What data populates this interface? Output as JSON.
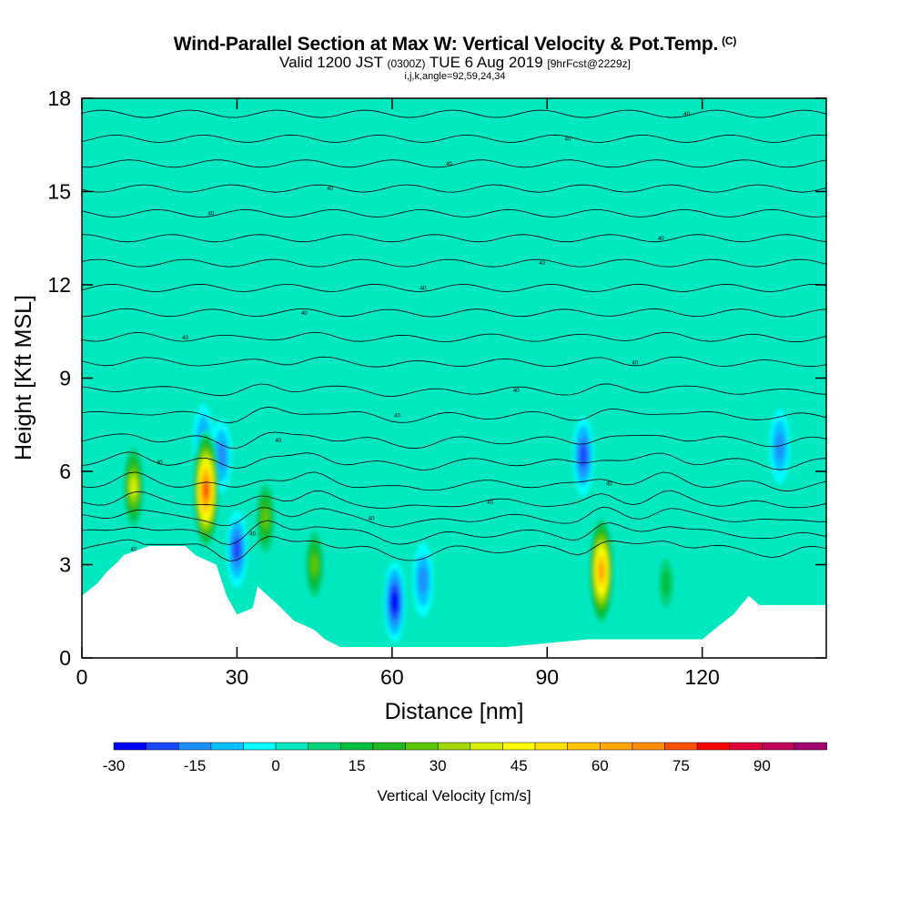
{
  "header": {
    "title_main": "Wind-Parallel Section at Max W: Vertical Velocity & Pot.Temp.",
    "title_mark": "(C)",
    "valid_a": "Valid 1200 JST",
    "valid_zulu": "(0300Z)",
    "valid_b": "TUE 6 Aug 2019",
    "forecast": "[9hrFcst@2229z]",
    "indices": "i,j,k,angle=92,59,24,34"
  },
  "chart_data": {
    "type": "heatmap",
    "xlabel": "Distance [nm]",
    "ylabel": "Height [Kft MSL]",
    "xlim": [
      0,
      144
    ],
    "ylim": [
      0,
      18
    ],
    "x_ticks": [
      0,
      30,
      60,
      90,
      120
    ],
    "y_ticks": [
      0,
      3,
      6,
      9,
      12,
      15,
      18
    ],
    "background_value": 0,
    "colorbar": {
      "title": "Vertical Velocity [cm/s]",
      "min": -30,
      "max": 96,
      "step": 6,
      "tick_values": [
        -30,
        -15,
        0,
        15,
        30,
        45,
        60,
        75,
        90
      ],
      "colors": [
        "#0000ff",
        "#1a48ff",
        "#1e90ff",
        "#00c0ff",
        "#00ffff",
        "#00e8c0",
        "#00d37a",
        "#00c040",
        "#22b822",
        "#5cc800",
        "#a0d800",
        "#d8f000",
        "#ffff00",
        "#ffe000",
        "#ffc400",
        "#ffa800",
        "#ff8c00",
        "#ff5000",
        "#ff0000",
        "#e0003c",
        "#c0005a",
        "#a00070",
        "#800080"
      ]
    },
    "updraft_cores": [
      {
        "x": 10,
        "z": 5.5,
        "peak": 42
      },
      {
        "x": 24,
        "z": 5.4,
        "peak": 80
      },
      {
        "x": 35.5,
        "z": 4.5,
        "peak": 35
      },
      {
        "x": 45,
        "z": 3.0,
        "peak": 30
      },
      {
        "x": 100.5,
        "z": 2.8,
        "peak": 70
      },
      {
        "x": 113,
        "z": 2.4,
        "peak": 18
      }
    ],
    "downdraft_cores": [
      {
        "x": 23.5,
        "z": 7.0,
        "peak": -20
      },
      {
        "x": 27,
        "z": 6.5,
        "peak": -22
      },
      {
        "x": 30,
        "z": 3.5,
        "peak": -25
      },
      {
        "x": 60.5,
        "z": 1.8,
        "peak": -30
      },
      {
        "x": 66,
        "z": 2.5,
        "peak": -22
      },
      {
        "x": 97,
        "z": 6.5,
        "peak": -28
      },
      {
        "x": 135,
        "z": 6.8,
        "peak": -22
      }
    ],
    "terrain_profile": [
      {
        "x": 0,
        "z": 2.0
      },
      {
        "x": 3,
        "z": 2.4
      },
      {
        "x": 5,
        "z": 2.8
      },
      {
        "x": 7,
        "z": 3.1
      },
      {
        "x": 8,
        "z": 3.3
      },
      {
        "x": 13,
        "z": 3.6
      },
      {
        "x": 20,
        "z": 3.6
      },
      {
        "x": 22,
        "z": 3.3
      },
      {
        "x": 26,
        "z": 3.0
      },
      {
        "x": 28,
        "z": 2.0
      },
      {
        "x": 30,
        "z": 1.4
      },
      {
        "x": 33,
        "z": 1.6
      },
      {
        "x": 34,
        "z": 2.3
      },
      {
        "x": 36,
        "z": 2.0
      },
      {
        "x": 38,
        "z": 1.7
      },
      {
        "x": 41,
        "z": 1.2
      },
      {
        "x": 45,
        "z": 0.9
      },
      {
        "x": 47,
        "z": 0.6
      },
      {
        "x": 50,
        "z": 0.35
      },
      {
        "x": 66,
        "z": 0.35
      },
      {
        "x": 74,
        "z": 0.35
      },
      {
        "x": 82,
        "z": 0.35
      },
      {
        "x": 98,
        "z": 0.6
      },
      {
        "x": 110,
        "z": 0.6
      },
      {
        "x": 120,
        "z": 0.6
      },
      {
        "x": 123,
        "z": 1.0
      },
      {
        "x": 126,
        "z": 1.4
      },
      {
        "x": 129,
        "z": 2.0
      },
      {
        "x": 131,
        "z": 1.7
      },
      {
        "x": 144,
        "z": 1.7
      }
    ],
    "isentropes_kft": [
      3.5,
      4.0,
      4.5,
      5.0,
      5.6,
      6.3,
      7.0,
      7.8,
      8.6,
      9.5,
      10.3,
      11.1,
      11.9,
      12.7,
      13.5,
      14.3,
      15.1,
      15.9,
      16.7,
      17.5
    ],
    "isentrope_label": "40"
  }
}
